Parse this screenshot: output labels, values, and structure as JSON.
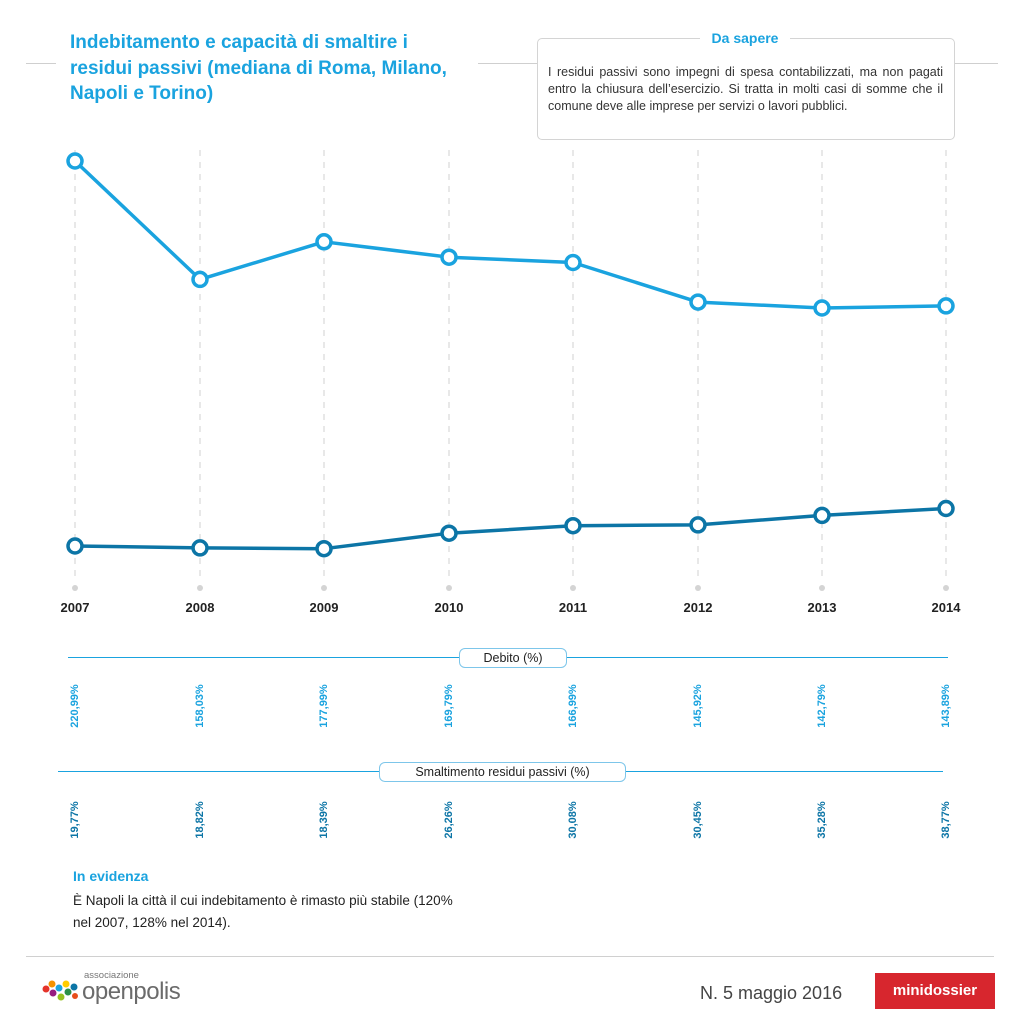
{
  "title": "Indebitamento e capacità di smaltire i residui passivi (mediana di Roma, Milano, Napoli e Torino)",
  "info_box": {
    "title": "Da sapere",
    "text": "I residui passivi sono impegni di spesa contabilizzati, ma non pagati entro la chiusura dell’esercizio. Si tratta in molti casi di somme che il comune deve alle imprese per servizi o lavori pubblici."
  },
  "chart_data": {
    "type": "line",
    "x": [
      "2007",
      "2008",
      "2009",
      "2010",
      "2011",
      "2012",
      "2013",
      "2014"
    ],
    "series": [
      {
        "name": "Debito (%)",
        "values": [
          220.99,
          158.03,
          177.99,
          169.79,
          166.99,
          145.92,
          142.79,
          143.89
        ],
        "labels": [
          "220,99%",
          "158,03%",
          "177,99%",
          "169,79%",
          "166,99%",
          "145,92%",
          "142,79%",
          "143,89%"
        ],
        "color": "#1aa3df"
      },
      {
        "name": "Smaltimento residui passivi (%)",
        "values": [
          19.77,
          18.82,
          18.39,
          26.26,
          30.08,
          30.45,
          35.28,
          38.77
        ],
        "labels": [
          "19,77%",
          "18,82%",
          "18,39%",
          "26,26%",
          "30,08%",
          "30,45%",
          "35,28%",
          "38,77%"
        ],
        "color": "#0c75a6"
      }
    ],
    "grid": true
  },
  "evidence": {
    "title": "In evidenza",
    "text": "È Napoli la città il cui indebitamento è rimasto più stabile (120% nel 2007, 128% nel 2014)."
  },
  "footer": {
    "logo_small": "associazione",
    "logo_big": "openpolis",
    "issue": "N. 5 maggio 2016",
    "badge": "minidossier",
    "colors": {
      "badge": "#d7262e",
      "accent": "#1aa3df",
      "dark_accent": "#0c75a6"
    }
  }
}
